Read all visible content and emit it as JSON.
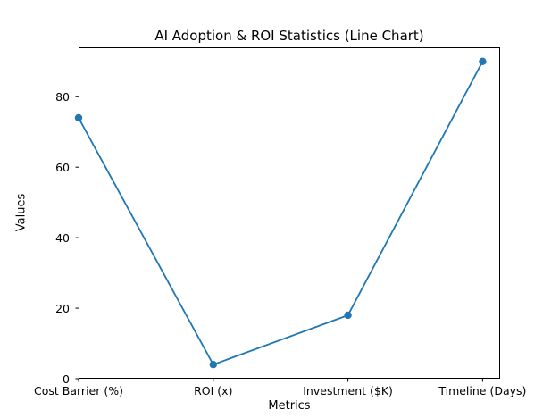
{
  "chart_data": {
    "type": "line",
    "title": "AI Adoption & ROI Statistics (Line Chart)",
    "xlabel": "Metrics",
    "ylabel": "Values",
    "categories": [
      "Cost Barrier (%)",
      "ROI (x)",
      "Investment ($K)",
      "Timeline (Days)"
    ],
    "values": [
      74,
      4,
      18,
      90
    ],
    "yticks": [
      0,
      20,
      40,
      60,
      80
    ],
    "xlim": [
      0,
      3.13
    ],
    "ylim": [
      0,
      94
    ],
    "grid": false,
    "legend": null,
    "line_color": "#1f77b4",
    "marker": "circle",
    "spine_color": "#000000",
    "background_color": "#ffffff",
    "text_color": "#000000"
  }
}
